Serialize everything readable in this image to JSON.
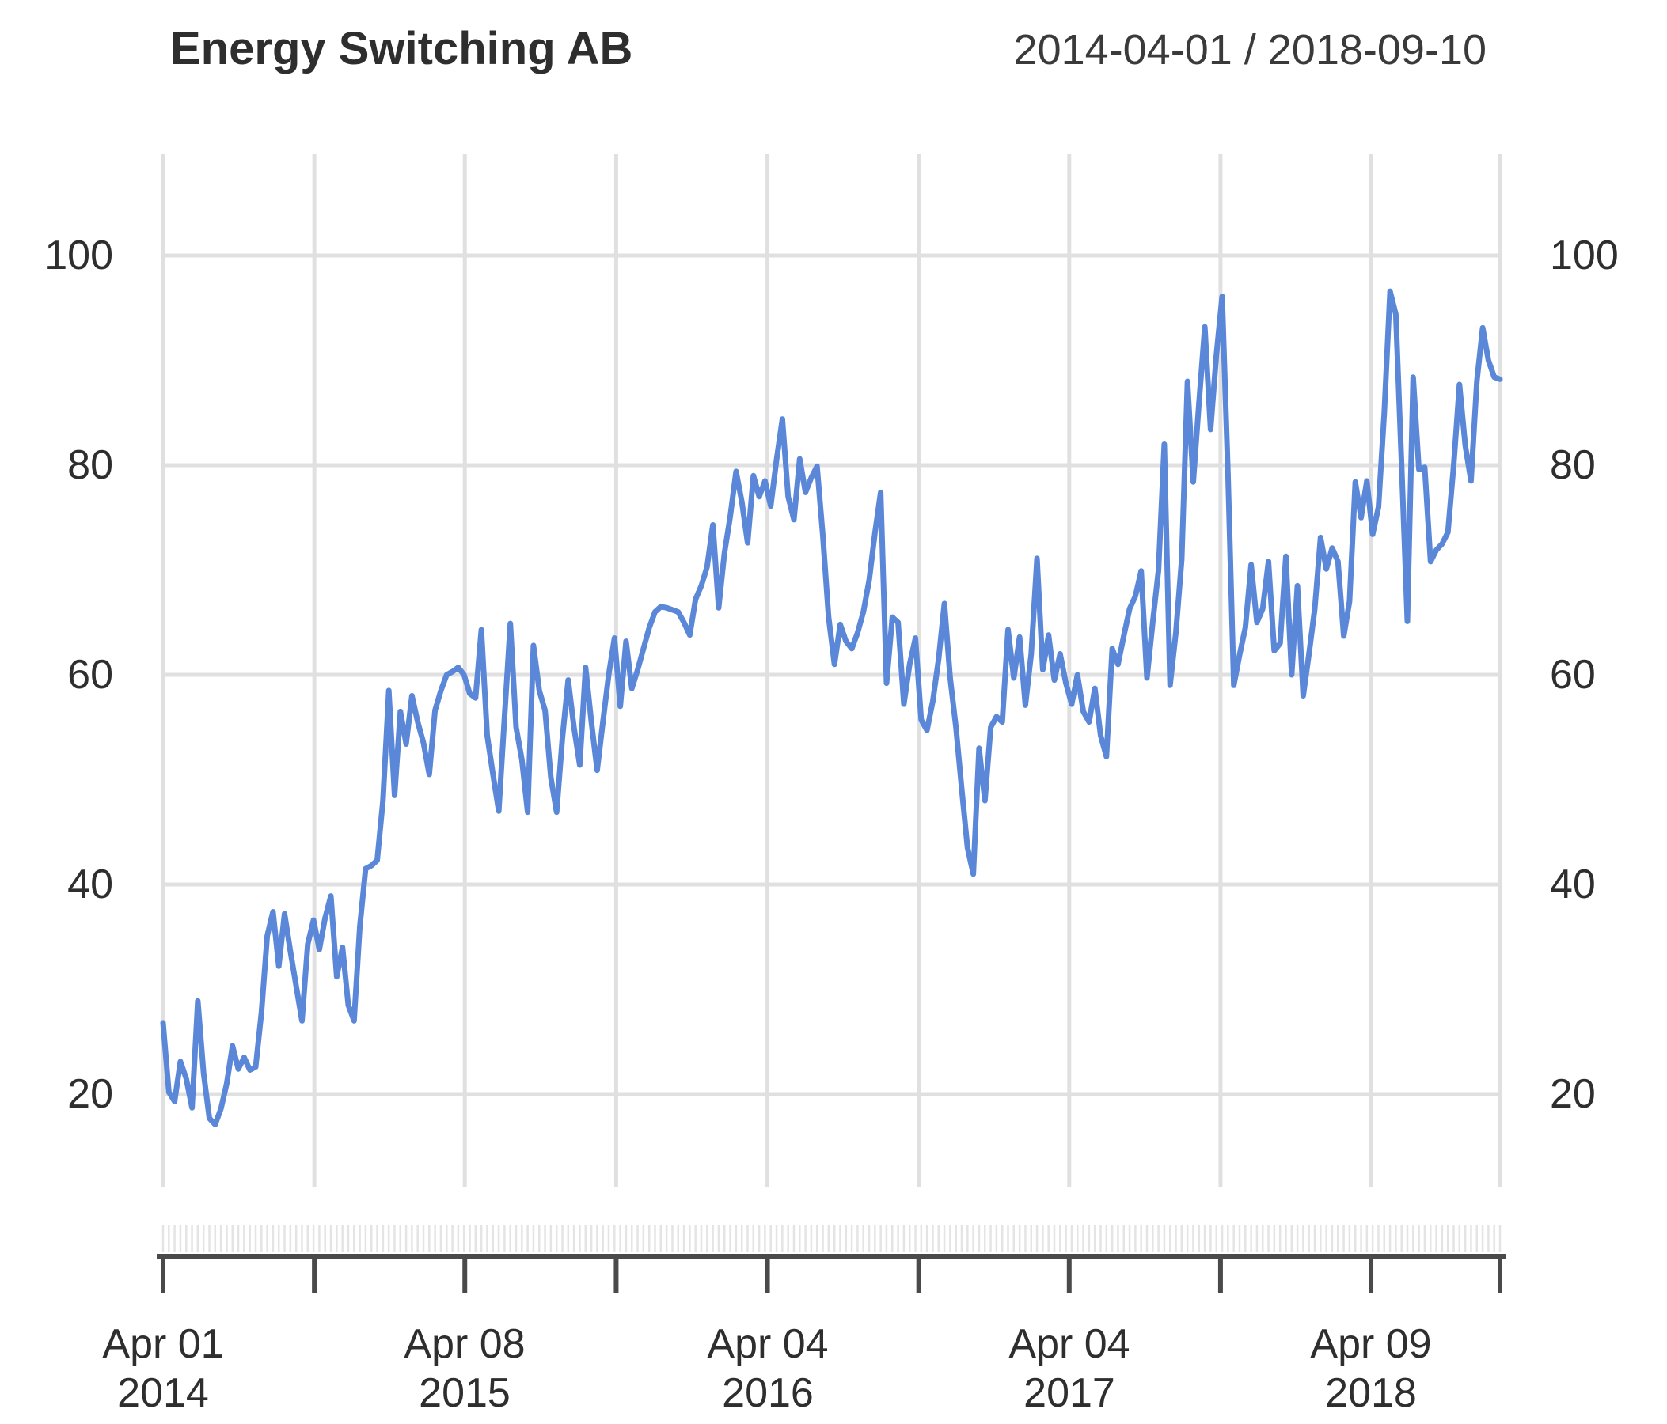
{
  "header": {
    "title": "Energy Switching AB",
    "date_range": "2014-04-01 / 2018-09-10"
  },
  "axes": {
    "y_left": [
      "100",
      "80",
      "60",
      "40",
      "20"
    ],
    "y_right": [
      "100",
      "80",
      "60",
      "40",
      "20"
    ],
    "x_labels": [
      {
        "month_day": "Apr 01",
        "year": "2014"
      },
      {
        "month_day": "Apr 08",
        "year": "2015"
      },
      {
        "month_day": "Apr 04",
        "year": "2016"
      },
      {
        "month_day": "Apr 04",
        "year": "2017"
      },
      {
        "month_day": "Apr 09",
        "year": "2018"
      }
    ]
  },
  "colors": {
    "background": "#ffffff",
    "grid": "#e0e0e0",
    "minor_tick": "#e4e4e4",
    "axis": "#4a4a4a",
    "text": "#2e2e2e",
    "line": "#5a87d7"
  },
  "chart_data": {
    "type": "line",
    "title": "Energy Switching AB",
    "subtitle": "2014-04-01 / 2018-09-10",
    "x_start": "2014-04-01",
    "x_end": "2018-09-10",
    "frequency": "weekly",
    "xlabel": "",
    "ylabel": "",
    "ylim": [
      8,
      110
    ],
    "y_ticks": [
      20,
      40,
      60,
      80,
      100
    ],
    "grid": true,
    "legend": "none",
    "series": [
      {
        "name": "Energy Switching AB",
        "values": [
          26.8,
          20.2,
          19.3,
          23.1,
          21.5,
          18.7,
          28.9,
          22.0,
          17.7,
          17.1,
          18.6,
          21.0,
          24.6,
          22.4,
          23.5,
          22.3,
          22.6,
          27.8,
          35.1,
          37.4,
          32.2,
          37.2,
          33.6,
          30.3,
          27.0,
          34.3,
          36.6,
          33.8,
          36.8,
          38.9,
          31.2,
          34.0,
          28.5,
          27.0,
          36.0,
          41.5,
          41.8,
          42.3,
          48.0,
          58.5,
          48.5,
          56.5,
          53.4,
          58.0,
          55.5,
          53.5,
          50.5,
          56.6,
          58.5,
          60.0,
          60.3,
          60.7,
          60.0,
          58.2,
          57.8,
          64.3,
          54.2,
          50.5,
          47.0,
          56.0,
          64.9,
          55.0,
          51.9,
          46.9,
          62.8,
          58.5,
          56.6,
          50.2,
          46.9,
          54.0,
          59.5,
          55.0,
          51.4,
          60.7,
          55.5,
          50.9,
          55.5,
          60.0,
          63.5,
          57.0,
          63.2,
          58.7,
          60.5,
          62.5,
          64.5,
          66.0,
          66.5,
          66.4,
          66.2,
          66.0,
          65.0,
          63.8,
          67.2,
          68.5,
          70.3,
          74.3,
          66.4,
          71.6,
          75.1,
          79.4,
          76.5,
          72.6,
          79.0,
          77.0,
          78.5,
          76.1,
          80.5,
          84.4,
          77.0,
          74.8,
          80.6,
          77.4,
          78.8,
          79.9,
          73.3,
          65.5,
          61.0,
          64.8,
          63.2,
          62.5,
          64.0,
          66.0,
          69.0,
          73.5,
          77.4,
          59.2,
          65.5,
          65.0,
          57.2,
          61.0,
          63.5,
          55.7,
          54.7,
          57.5,
          61.5,
          66.8,
          59.7,
          55.0,
          49.1,
          43.5,
          41.0,
          53.0,
          48.0,
          55.0,
          56.0,
          55.5,
          64.3,
          59.7,
          63.6,
          57.1,
          62.0,
          71.1,
          60.5,
          63.8,
          59.5,
          62.0,
          59.2,
          57.2,
          60.0,
          56.5,
          55.5,
          58.7,
          54.2,
          52.2,
          62.5,
          61.0,
          63.7,
          66.3,
          67.5,
          69.9,
          59.7,
          65.0,
          70.0,
          82.0,
          59.0,
          64.0,
          71.0,
          88.0,
          78.4,
          86.0,
          93.2,
          83.4,
          90.5,
          96.1,
          79.1,
          59.0,
          61.9,
          64.5,
          70.5,
          65.0,
          66.3,
          70.8,
          62.3,
          63.0,
          71.3,
          60.0,
          68.5,
          58.0,
          62.0,
          66.3,
          73.1,
          70.1,
          72.1,
          70.8,
          63.7,
          67.0,
          78.4,
          75.0,
          78.5,
          73.4,
          76.0,
          85.0,
          96.6,
          94.4,
          80.0,
          65.1,
          88.4,
          79.6,
          79.8,
          70.8,
          71.9,
          72.5,
          73.6,
          80.0,
          87.7,
          81.9,
          78.5,
          88.0,
          93.1,
          90.0,
          88.4,
          88.2
        ]
      }
    ]
  }
}
